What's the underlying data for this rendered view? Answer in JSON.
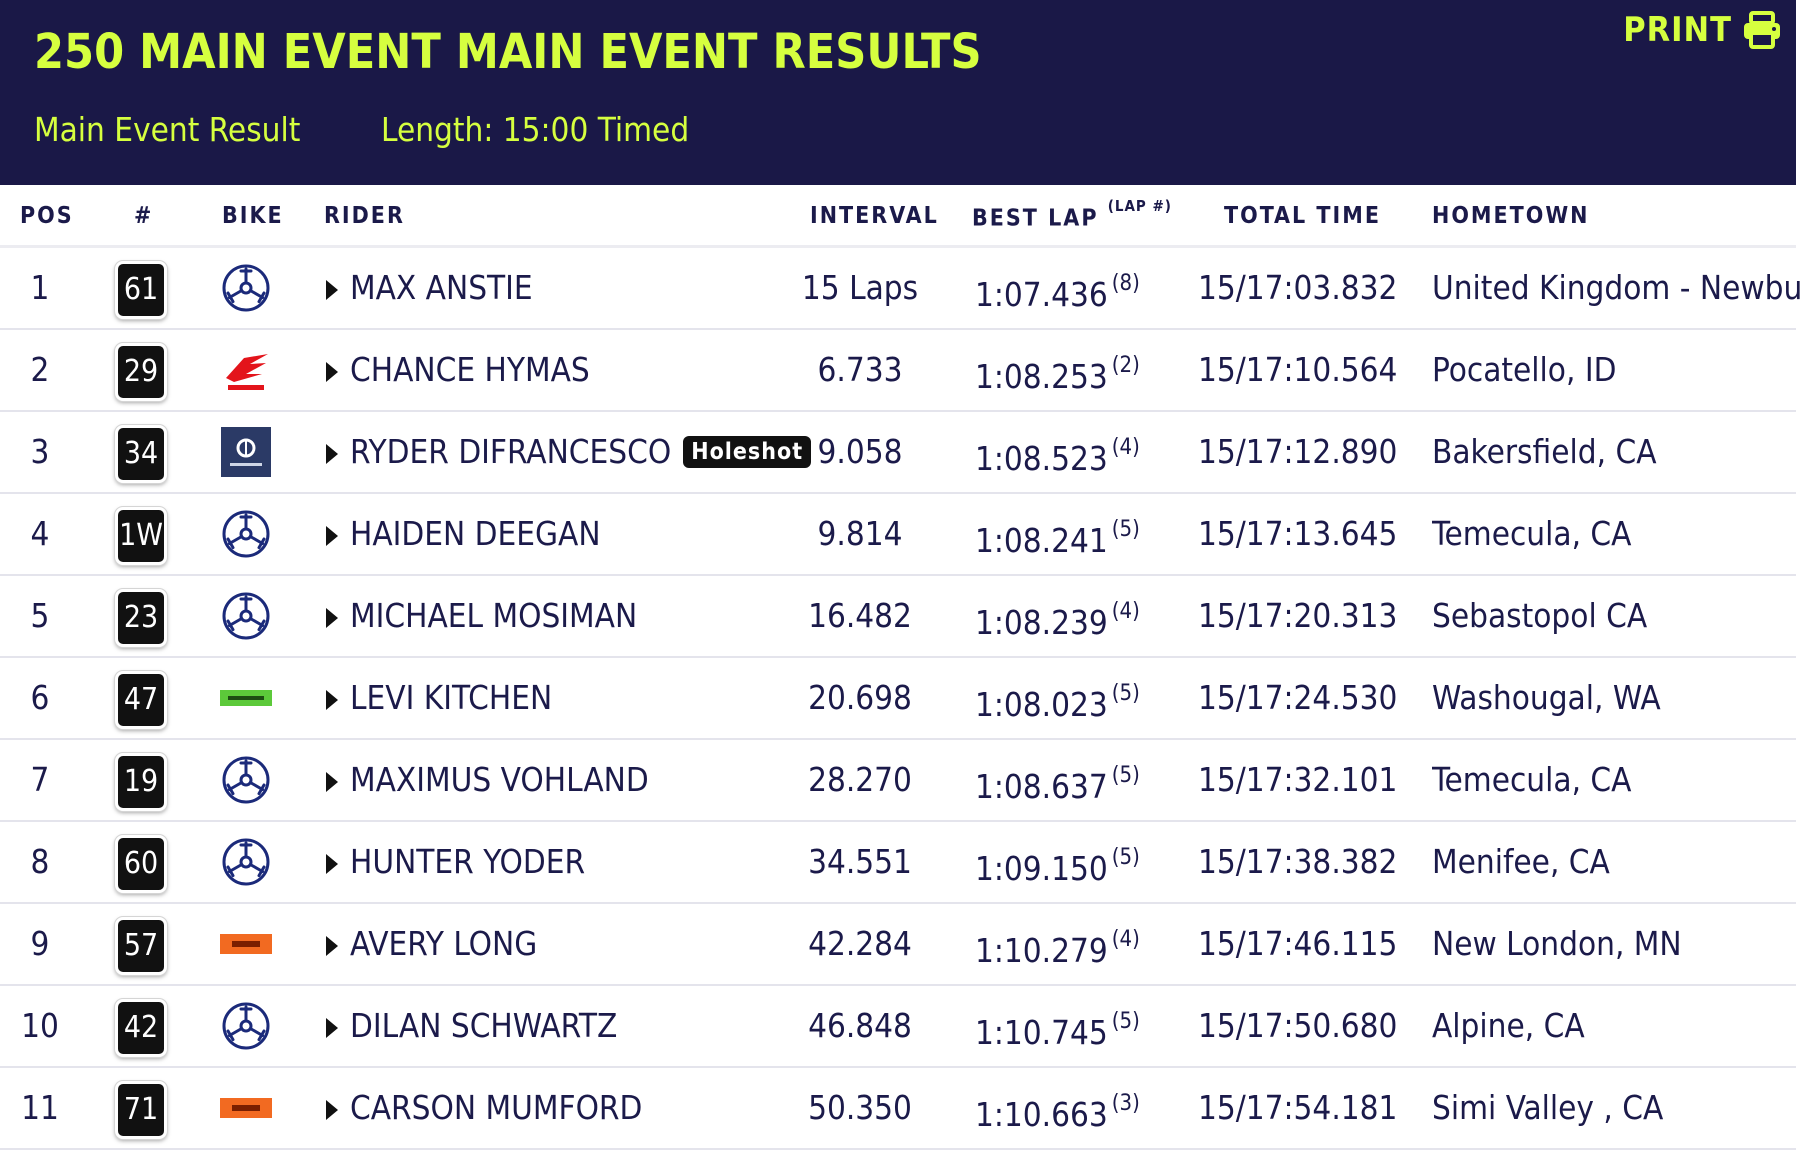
{
  "header": {
    "title": "250 MAIN EVENT MAIN EVENT RESULTS",
    "result_type": "Main Event Result",
    "length": "Length: 15:00 Timed",
    "print_label": "PRINT",
    "print_icon": "printer-icon",
    "accent_color": "#d6ff3f",
    "background_color": "#1a1847"
  },
  "table": {
    "columns": {
      "pos": "POS",
      "number": "#",
      "bike": "BIKE",
      "rider": "RIDER",
      "interval": "INTERVAL",
      "best_lap": "BEST LAP",
      "best_lap_sup": "(LAP #)",
      "total_time": "TOTAL TIME",
      "hometown": "HOMETOWN"
    },
    "rows": [
      {
        "pos": "1",
        "number": "61",
        "bike": "yamaha",
        "rider": "MAX ANSTIE",
        "badge": "",
        "interval": "15 Laps",
        "best_lap": "1:07.436",
        "lap": "(8)",
        "total_time": "15/17:03.832",
        "hometown": "United Kingdom - Newbury"
      },
      {
        "pos": "2",
        "number": "29",
        "bike": "honda",
        "rider": "CHANCE HYMAS",
        "badge": "",
        "interval": "6.733",
        "best_lap": "1:08.253",
        "lap": "(2)",
        "total_time": "15/17:10.564",
        "hometown": "Pocatello, ID"
      },
      {
        "pos": "3",
        "number": "34",
        "bike": "husqvarna",
        "rider": "RYDER DIFRANCESCO",
        "badge": "Holeshot",
        "interval": "9.058",
        "best_lap": "1:08.523",
        "lap": "(4)",
        "total_time": "15/17:12.890",
        "hometown": "Bakersfield, CA"
      },
      {
        "pos": "4",
        "number": "1W",
        "bike": "yamaha",
        "rider": "HAIDEN DEEGAN",
        "badge": "",
        "interval": "9.814",
        "best_lap": "1:08.241",
        "lap": "(5)",
        "total_time": "15/17:13.645",
        "hometown": "Temecula, CA"
      },
      {
        "pos": "5",
        "number": "23",
        "bike": "yamaha",
        "rider": "MICHAEL MOSIMAN",
        "badge": "",
        "interval": "16.482",
        "best_lap": "1:08.239",
        "lap": "(4)",
        "total_time": "15/17:20.313",
        "hometown": "Sebastopol CA"
      },
      {
        "pos": "6",
        "number": "47",
        "bike": "kawasaki",
        "rider": "LEVI KITCHEN",
        "badge": "",
        "interval": "20.698",
        "best_lap": "1:08.023",
        "lap": "(5)",
        "total_time": "15/17:24.530",
        "hometown": "Washougal, WA"
      },
      {
        "pos": "7",
        "number": "19",
        "bike": "yamaha",
        "rider": "MAXIMUS VOHLAND",
        "badge": "",
        "interval": "28.270",
        "best_lap": "1:08.637",
        "lap": "(5)",
        "total_time": "15/17:32.101",
        "hometown": "Temecula, CA"
      },
      {
        "pos": "8",
        "number": "60",
        "bike": "yamaha",
        "rider": "HUNTER YODER",
        "badge": "",
        "interval": "34.551",
        "best_lap": "1:09.150",
        "lap": "(5)",
        "total_time": "15/17:38.382",
        "hometown": "Menifee, CA"
      },
      {
        "pos": "9",
        "number": "57",
        "bike": "ktm",
        "rider": "AVERY LONG",
        "badge": "",
        "interval": "42.284",
        "best_lap": "1:10.279",
        "lap": "(4)",
        "total_time": "15/17:46.115",
        "hometown": "New London, MN"
      },
      {
        "pos": "10",
        "number": "42",
        "bike": "yamaha",
        "rider": "DILAN SCHWARTZ",
        "badge": "",
        "interval": "46.848",
        "best_lap": "1:10.745",
        "lap": "(5)",
        "total_time": "15/17:50.680",
        "hometown": "Alpine, CA"
      },
      {
        "pos": "11",
        "number": "71",
        "bike": "ktm",
        "rider": "CARSON MUMFORD",
        "badge": "",
        "interval": "50.350",
        "best_lap": "1:10.663",
        "lap": "(3)",
        "total_time": "15/17:54.181",
        "hometown": "Simi Valley , CA"
      }
    ]
  }
}
